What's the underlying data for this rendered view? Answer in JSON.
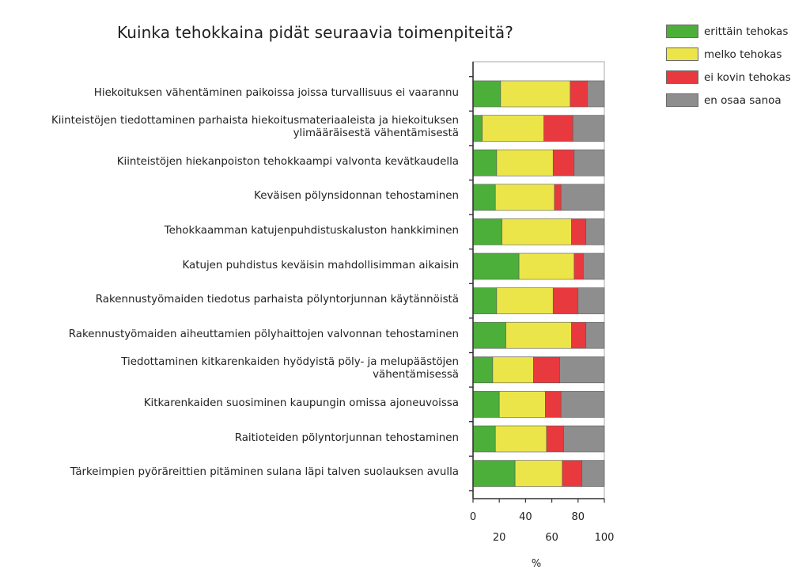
{
  "chart_data": {
    "type": "bar",
    "orientation": "horizontal",
    "stacked": true,
    "title": "Kuinka tehokkaina pidät seuraavia toimenpiteitä?",
    "xlabel": "%",
    "xlim": [
      0,
      100
    ],
    "x_ticks_upper": [
      "0",
      "40",
      "80"
    ],
    "x_ticks_lower": [
      "20",
      "60",
      "100"
    ],
    "legend_position": "top-right",
    "categories": [
      "Hiekoituksen vähentäminen paikoissa joissa turvallisuus ei vaarannu",
      "Kiinteistöjen tiedottaminen parhaista hiekoitusmateriaaleista ja hiekoituksen\nylimääräisestä vähentämisestä",
      "Kiinteistöjen hiekanpoiston tehokkaampi valvonta kevätkaudella",
      "Keväisen pölynsidonnan tehostaminen",
      "Tehokkaamman katujenpuhdistuskaluston hankkiminen",
      "Katujen puhdistus keväisin mahdollisimman aikaisin",
      "Rakennustyömaiden tiedotus parhaista pölyntorjunnan käytännöistä",
      "Rakennustyömaiden aiheuttamien pölyhaittojen valvonnan tehostaminen",
      "Tiedottaminen kitkarenkaiden hyödyistä pöly- ja melupäästöjen\nvähentämisessä",
      "Kitkarenkaiden suosiminen kaupungin omissa ajoneuvoissa",
      "Raitioteiden pölyntorjunnan tehostaminen",
      "Tärkeimpien pyöräreittien pitäminen sulana läpi talven suolauksen avulla"
    ],
    "series": [
      {
        "name": "erittäin tehokas",
        "color": "#4caf3a",
        "values": [
          21,
          7,
          18,
          17,
          22,
          35,
          18,
          25,
          15,
          20,
          17,
          32
        ]
      },
      {
        "name": "melko tehokas",
        "color": "#ece54a",
        "values": [
          53,
          47,
          43,
          45,
          53,
          42,
          43,
          50,
          31,
          35,
          39,
          36
        ]
      },
      {
        "name": "ei kovin tehokas",
        "color": "#e8393f",
        "values": [
          13,
          22,
          16,
          5,
          11,
          7,
          19,
          11,
          20,
          12,
          13,
          15
        ]
      },
      {
        "name": "en osaa sanoa",
        "color": "#8e8e8e",
        "values": [
          13,
          24,
          23,
          33,
          14,
          16,
          20,
          14,
          34,
          33,
          31,
          17
        ]
      }
    ]
  }
}
